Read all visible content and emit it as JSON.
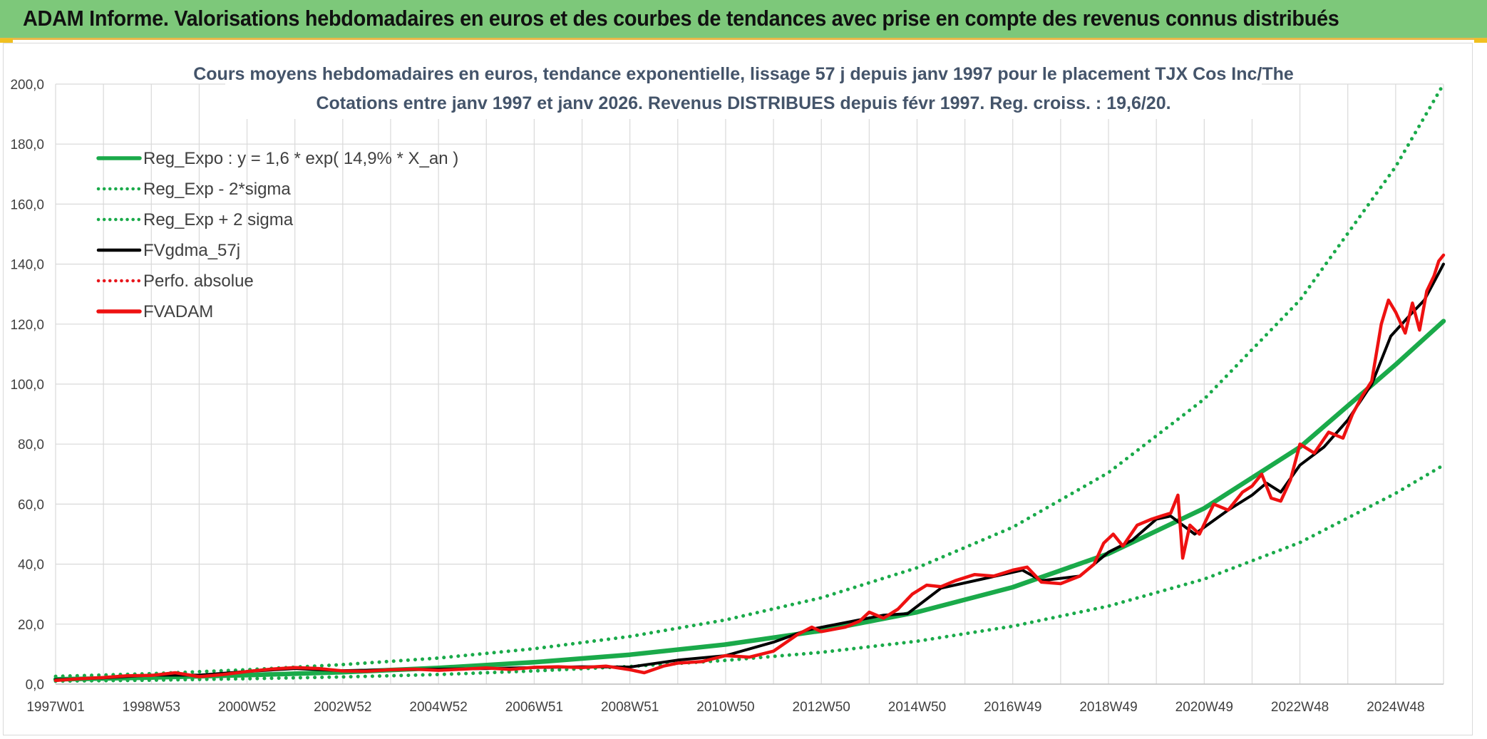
{
  "header": {
    "title": "ADAM Informe. Valorisations hebdomadaires en euros et des courbes de tendances avec prise en compte des revenus connus distribués"
  },
  "chart_data": {
    "type": "line",
    "title": "Cours moyens hebdomadaires en euros, tendance exponentielle, lissage 57 j depuis janv 1997 pour le placement TJX Cos Inc/The",
    "subtitle": "Cotations entre janv 1997 et janv 2026. Revenus DISTRIBUES depuis févr 1997. Reg. croiss. : 19,6/20.",
    "xlabel": "",
    "ylabel": "",
    "ylim": [
      0,
      200
    ],
    "xlim": [
      1997.0,
      2026.0
    ],
    "grid": true,
    "legend_position": "top-left",
    "y_ticks": [
      "0,0",
      "20,0",
      "40,0",
      "60,0",
      "80,0",
      "100,0",
      "120,0",
      "140,0",
      "160,0",
      "180,0",
      "200,0"
    ],
    "x_ticks": [
      {
        "label": "1997W01",
        "x": 1997.0
      },
      {
        "label": "1998W53",
        "x": 1999.0
      },
      {
        "label": "2000W52",
        "x": 2001.0
      },
      {
        "label": "2002W52",
        "x": 2003.0
      },
      {
        "label": "2004W52",
        "x": 2005.0
      },
      {
        "label": "2006W51",
        "x": 2007.0
      },
      {
        "label": "2008W51",
        "x": 2009.0
      },
      {
        "label": "2010W50",
        "x": 2011.0
      },
      {
        "label": "2012W50",
        "x": 2013.0
      },
      {
        "label": "2014W50",
        "x": 2015.0
      },
      {
        "label": "2016W49",
        "x": 2017.0
      },
      {
        "label": "2018W49",
        "x": 2019.0
      },
      {
        "label": "2020W49",
        "x": 2021.0
      },
      {
        "label": "2022W48",
        "x": 2023.0
      },
      {
        "label": "2024W48",
        "x": 2025.0
      }
    ],
    "series": [
      {
        "name": "Reg_Expo : y = 1,6 * exp( 14,9% *  X_an )",
        "color": "#1aaa4a",
        "style": "solid",
        "x": [
          1997,
          1999,
          2001,
          2003,
          2005,
          2007,
          2009,
          2011,
          2013,
          2015,
          2017,
          2019,
          2021,
          2023,
          2025,
          2026
        ],
        "values": [
          1.6,
          2.2,
          3.0,
          4.0,
          5.4,
          7.3,
          9.8,
          13.2,
          17.8,
          24.0,
          32.3,
          43.5,
          58.6,
          79.0,
          106.5,
          121.0
        ]
      },
      {
        "name": "Reg_Exp - 2*sigma",
        "color": "#1aaa4a",
        "style": "dotted",
        "x": [
          1997,
          1999,
          2001,
          2003,
          2005,
          2007,
          2009,
          2011,
          2013,
          2015,
          2017,
          2019,
          2021,
          2023,
          2025,
          2026
        ],
        "values": [
          1.0,
          1.3,
          1.8,
          2.4,
          3.2,
          4.4,
          5.9,
          7.9,
          10.6,
          14.3,
          19.3,
          26.0,
          35.0,
          47.2,
          63.6,
          73.0
        ]
      },
      {
        "name": "Reg_Exp + 2 sigma",
        "color": "#1aaa4a",
        "style": "dotted",
        "x": [
          1997,
          1999,
          2001,
          2003,
          2005,
          2007,
          2009,
          2011,
          2013,
          2015,
          2017,
          2019,
          2021,
          2023,
          2025,
          2026
        ],
        "values": [
          2.6,
          3.5,
          4.8,
          6.5,
          8.7,
          11.8,
          15.9,
          21.4,
          28.8,
          38.8,
          52.3,
          70.5,
          95.0,
          128.0,
          172.5,
          200.0
        ]
      },
      {
        "name": "FVgdma_57j",
        "color": "#000000",
        "style": "solid",
        "x": [
          1997.0,
          1998.0,
          1999.0,
          2000.0,
          2001.0,
          2002.0,
          2003.0,
          2004.0,
          2005.0,
          2006.0,
          2007.0,
          2008.0,
          2009.0,
          2010.0,
          2011.0,
          2012.0,
          2012.7,
          2013.5,
          2014.3,
          2014.8,
          2015.5,
          2016.5,
          2017.2,
          2017.6,
          2018.4,
          2019.0,
          2019.5,
          2020.0,
          2020.3,
          2020.8,
          2021.5,
          2022.0,
          2022.3,
          2022.6,
          2023.0,
          2023.5,
          2024.0,
          2024.5,
          2024.9,
          2025.3,
          2025.6,
          2026.0
        ],
        "values": [
          1.5,
          2.1,
          3.0,
          3.0,
          4.2,
          5.2,
          4.5,
          4.8,
          5.0,
          5.2,
          5.5,
          5.8,
          5.7,
          8.0,
          9.5,
          14.0,
          18.0,
          20.5,
          23.0,
          23.5,
          32.0,
          35.5,
          38.0,
          34.5,
          36.0,
          44.0,
          48.0,
          55.0,
          56.0,
          50.0,
          58.0,
          63.0,
          67.0,
          64.0,
          73.0,
          79.0,
          88.0,
          100.0,
          116.0,
          123.0,
          128.0,
          140.0
        ]
      },
      {
        "name": "Perfo. absolue",
        "color": "#e8161c",
        "style": "dotted",
        "x": [],
        "values": []
      },
      {
        "name": "FVADAM",
        "color": "#ee1111",
        "style": "solid",
        "x": [
          1997.0,
          1997.5,
          1998.0,
          1998.5,
          1999.0,
          1999.5,
          2000.0,
          2000.5,
          2001.0,
          2001.5,
          2002.0,
          2002.5,
          2003.0,
          2003.5,
          2004.0,
          2004.5,
          2005.0,
          2005.5,
          2006.0,
          2006.5,
          2007.0,
          2007.5,
          2008.0,
          2008.5,
          2009.0,
          2009.3,
          2009.7,
          2010.0,
          2010.5,
          2011.0,
          2011.5,
          2012.0,
          2012.5,
          2012.8,
          2013.0,
          2013.5,
          2013.8,
          2014.0,
          2014.3,
          2014.6,
          2014.9,
          2015.2,
          2015.5,
          2015.8,
          2016.2,
          2016.6,
          2017.0,
          2017.3,
          2017.6,
          2018.0,
          2018.4,
          2018.7,
          2018.9,
          2019.1,
          2019.3,
          2019.6,
          2019.9,
          2020.1,
          2020.3,
          2020.45,
          2020.55,
          2020.7,
          2020.9,
          2021.2,
          2021.5,
          2021.8,
          2022.0,
          2022.2,
          2022.4,
          2022.6,
          2022.8,
          2023.0,
          2023.3,
          2023.6,
          2023.9,
          2024.1,
          2024.3,
          2024.5,
          2024.7,
          2024.85,
          2025.0,
          2025.2,
          2025.35,
          2025.5,
          2025.65,
          2025.8,
          2025.9,
          2026.0
        ],
        "values": [
          1.2,
          1.8,
          2.2,
          2.8,
          2.9,
          3.8,
          2.5,
          3.2,
          4.2,
          5.0,
          5.5,
          5.2,
          4.4,
          4.3,
          4.8,
          5.0,
          4.6,
          5.0,
          5.4,
          4.9,
          5.6,
          5.8,
          5.5,
          6.0,
          4.8,
          3.8,
          6.0,
          7.0,
          7.5,
          9.5,
          9.0,
          11.0,
          16.5,
          19.0,
          17.5,
          19.0,
          21.0,
          24.0,
          22.0,
          25.0,
          30.0,
          33.0,
          32.5,
          34.5,
          36.5,
          36.0,
          38.0,
          39.0,
          34.0,
          33.5,
          36.0,
          40.0,
          47.0,
          50.0,
          46.0,
          53.0,
          55.0,
          56.0,
          57.0,
          63.0,
          42.0,
          53.0,
          50.0,
          60.0,
          58.0,
          64.0,
          66.0,
          70.0,
          62.0,
          61.0,
          68.0,
          80.0,
          77.0,
          84.0,
          82.0,
          90.0,
          96.0,
          101.0,
          120.0,
          128.0,
          124.0,
          117.0,
          127.0,
          118.0,
          131.0,
          136.0,
          141.0,
          143.0
        ]
      }
    ]
  }
}
